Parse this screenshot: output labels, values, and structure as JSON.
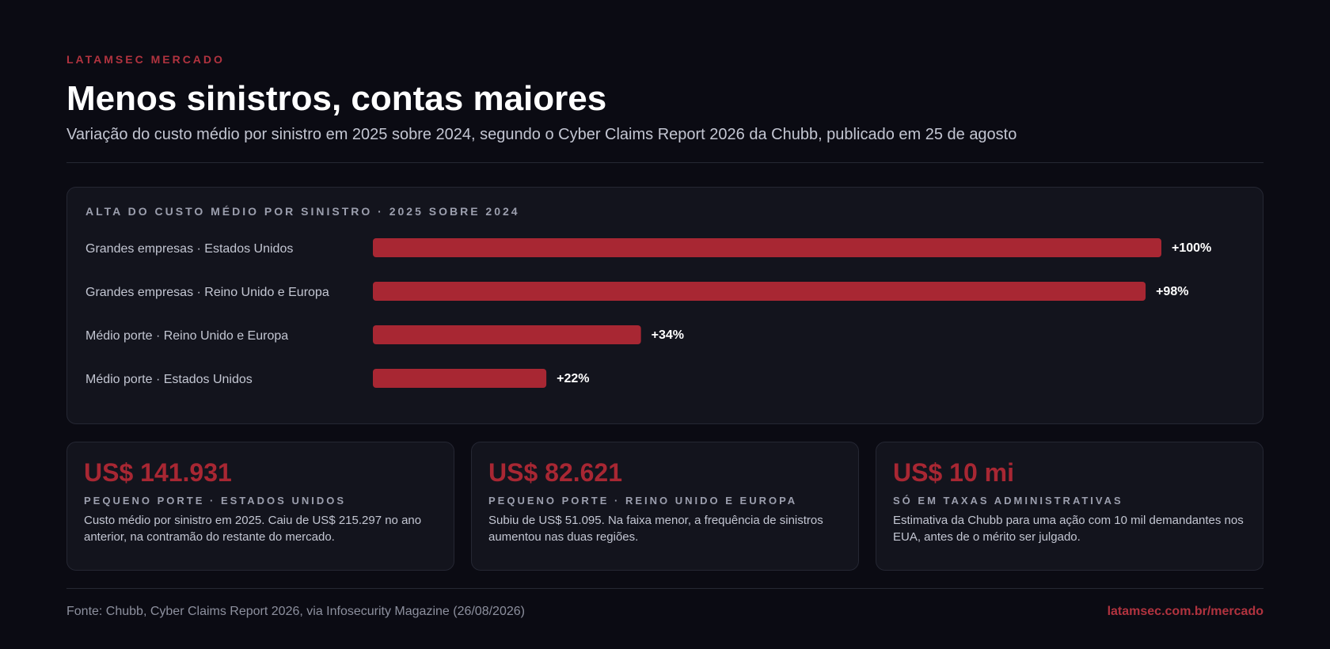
{
  "header": {
    "kicker": "LATAMSEC MERCADO",
    "title": "Menos sinistros, contas maiores",
    "subtitle": "Variação do custo médio por sinistro em 2025 sobre 2024, segundo o Cyber Claims Report 2026 da Chubb, publicado em 25 de agosto"
  },
  "chart_data": {
    "type": "bar",
    "orientation": "horizontal",
    "title": "ALTA DO CUSTO MÉDIO POR SINISTRO · 2025 SOBRE 2024",
    "categories": [
      "Grandes empresas · Estados Unidos",
      "Grandes empresas · Reino Unido e Europa",
      "Médio porte · Reino Unido e Europa",
      "Médio porte · Estados Unidos"
    ],
    "values": [
      100,
      98,
      34,
      22
    ],
    "value_labels": [
      "+100%",
      "+98%",
      "+34%",
      "+22%"
    ],
    "unit": "%",
    "xlim": [
      0,
      100
    ],
    "grid": false,
    "bar_color": "#a82733"
  },
  "stats": [
    {
      "value": "US$ 141.931",
      "label": "PEQUENO PORTE · ESTADOS UNIDOS",
      "description": "Custo médio por sinistro em 2025. Caiu de US$ 215.297 no ano anterior, na contramão do restante do mercado."
    },
    {
      "value": "US$ 82.621",
      "label": "PEQUENO PORTE · REINO UNIDO E EUROPA",
      "description": "Subiu de US$ 51.095. Na faixa menor, a frequência de sinistros aumentou nas duas regiões."
    },
    {
      "value": "US$ 10 mi",
      "label": "SÓ EM TAXAS ADMINISTRATIVAS",
      "description": "Estimativa da Chubb para uma ação com 10 mil demandantes nos EUA, antes de o mérito ser julgado."
    }
  ],
  "footer": {
    "source": "Fonte: Chubb, Cyber Claims Report 2026, via Infosecurity Magazine (26/08/2026)",
    "link": "latamsec.com.br/mercado"
  },
  "colors": {
    "background": "#0b0b13",
    "accent": "#b1333f",
    "bar": "#a82733"
  }
}
